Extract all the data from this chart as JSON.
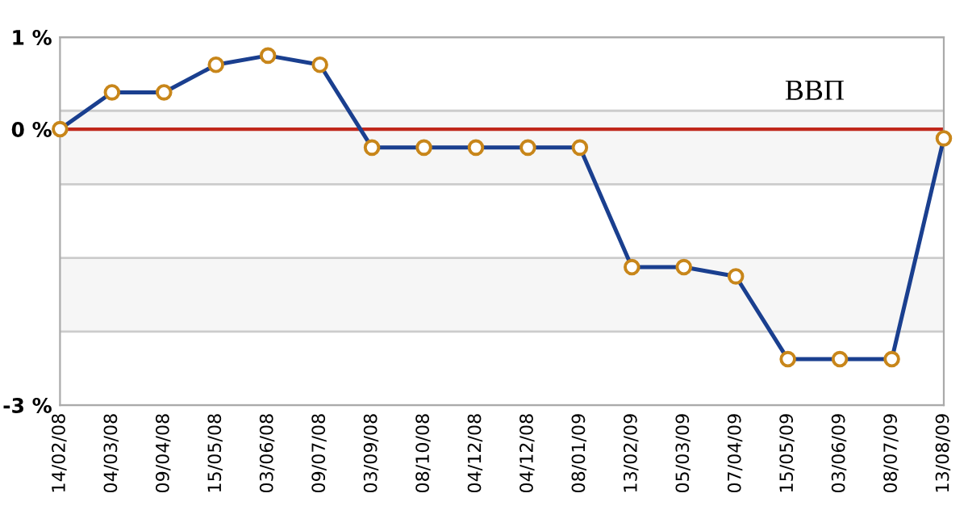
{
  "chart_data": {
    "type": "line",
    "annotations": [
      "ВВП"
    ],
    "categories": [
      "14/02/08",
      "04/03/08",
      "09/04/08",
      "15/05/08",
      "03/06/08",
      "09/07/08",
      "03/09/08",
      "08/10/08",
      "04/12/08",
      "04/12/08",
      "08/01/09",
      "13/02/09",
      "05/03/09",
      "07/04/09",
      "15/05/09",
      "03/06/09",
      "08/07/09",
      "13/08/09"
    ],
    "series": [
      {
        "color": "#1a3f8f",
        "values": [
          0,
          0.4,
          0.4,
          0.7,
          0.8,
          0.7,
          -0.2,
          -0.2,
          -0.2,
          -0.2,
          -0.2,
          -1.5,
          -1.5,
          -1.6,
          -2.5,
          -2.5,
          -2.5,
          -0.1
        ]
      }
    ],
    "ylim": [
      -3,
      1
    ],
    "yticks": [
      {
        "value": 1,
        "label": "1 %"
      },
      {
        "value": 0.2,
        "label": null
      },
      {
        "value": 0,
        "label": "0 %"
      },
      {
        "value": -0.6,
        "label": null
      },
      {
        "value": -1.4,
        "label": null
      },
      {
        "value": -2.2,
        "label": null
      },
      {
        "value": -3,
        "label": "-3 %"
      }
    ],
    "ref_lines": [
      {
        "axis": "y",
        "value": 0,
        "color": "#c0281c"
      }
    ],
    "bands": [
      {
        "axis": "y",
        "from": 0.2,
        "to": -0.6,
        "color": "#f6f6f6"
      },
      {
        "axis": "y",
        "from": -1.4,
        "to": -2.2,
        "color": "#f6f6f6"
      }
    ],
    "grid": "y",
    "marker": "circle",
    "line_style": "solid"
  }
}
